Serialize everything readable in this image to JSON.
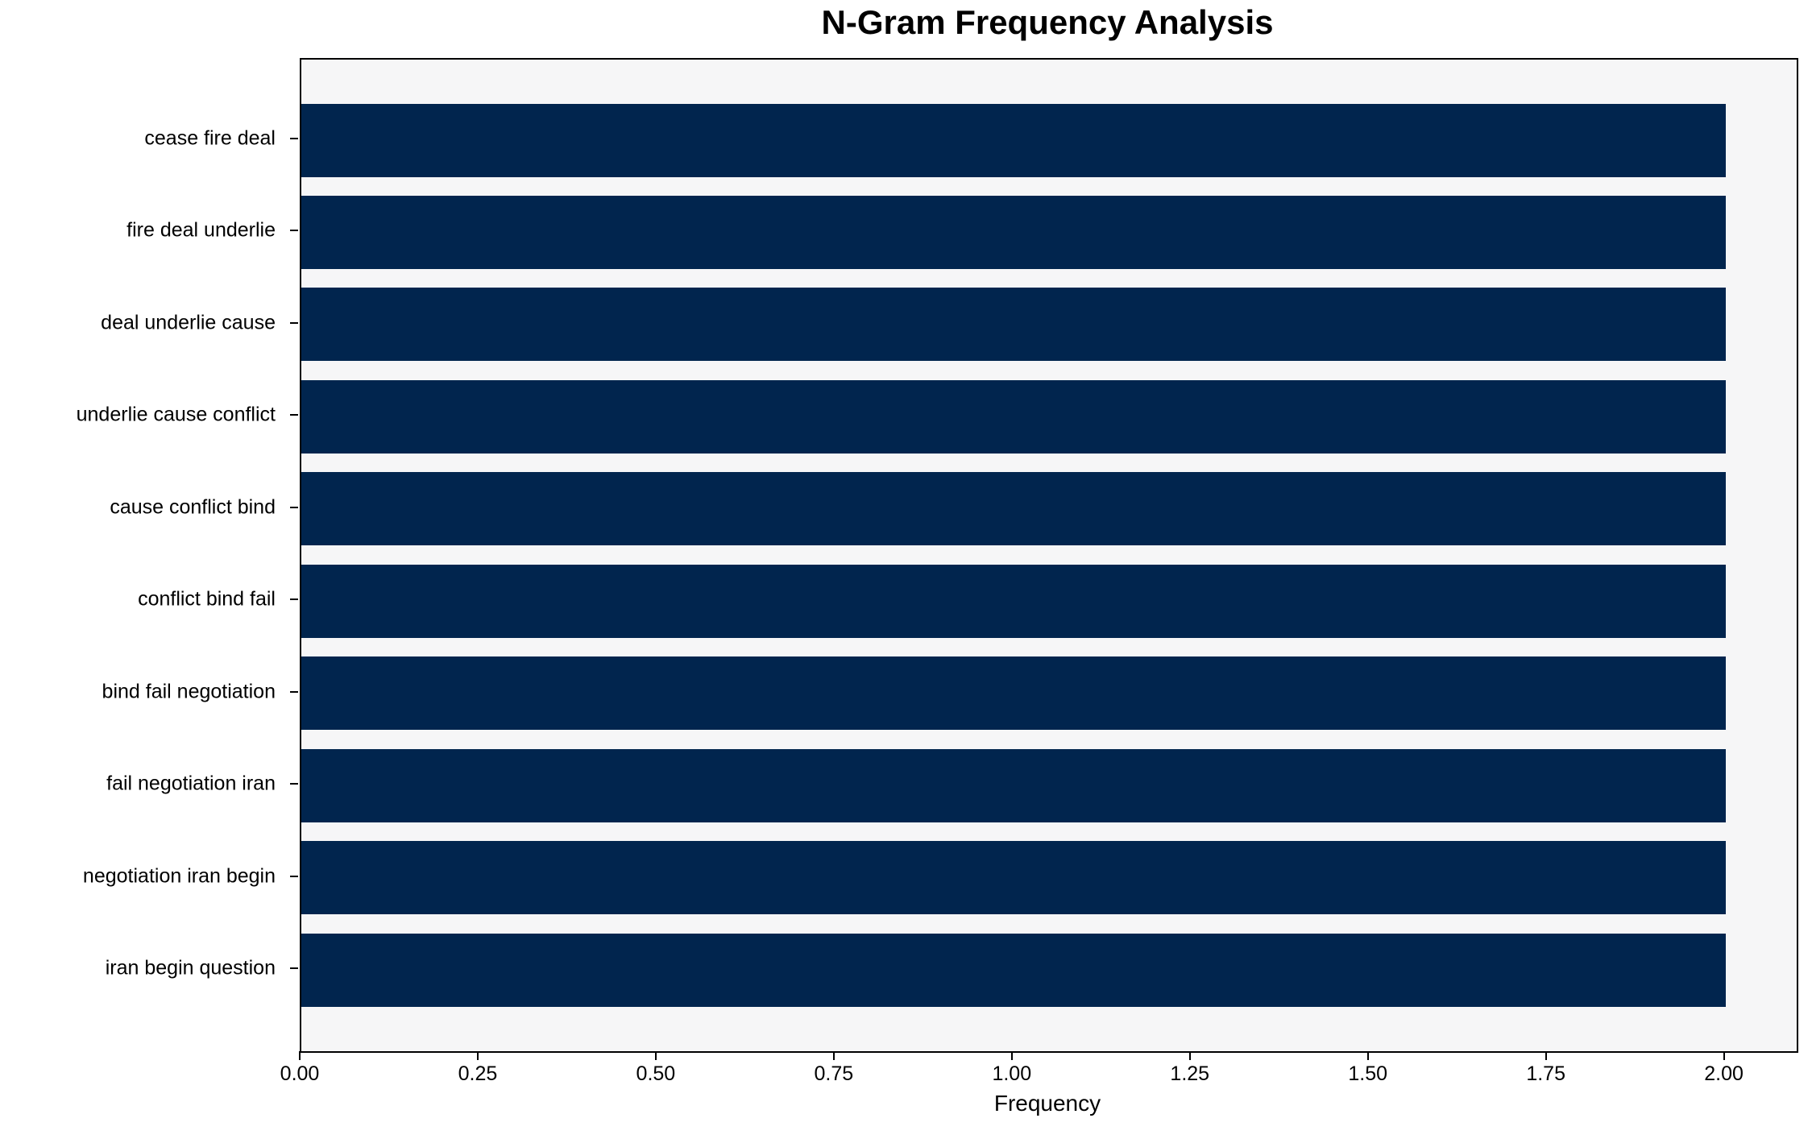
{
  "chart_data": {
    "type": "bar",
    "orientation": "horizontal",
    "title": "N-Gram Frequency Analysis",
    "xlabel": "Frequency",
    "ylabel": "",
    "categories": [
      "cease fire deal",
      "fire deal underlie",
      "deal underlie cause",
      "underlie cause conflict",
      "cause conflict bind",
      "conflict bind fail",
      "bind fail negotiation",
      "fail negotiation iran",
      "negotiation iran begin",
      "iran begin question"
    ],
    "values": [
      2,
      2,
      2,
      2,
      2,
      2,
      2,
      2,
      2,
      2
    ],
    "xlim": [
      0,
      2.1
    ],
    "xtick_values": [
      0.0,
      0.25,
      0.5,
      0.75,
      1.0,
      1.25,
      1.5,
      1.75,
      2.0
    ],
    "xtick_labels": [
      "0.00",
      "0.25",
      "0.50",
      "0.75",
      "1.00",
      "1.25",
      "1.50",
      "1.75",
      "2.00"
    ],
    "grid": false,
    "legend": null,
    "colors": {
      "bar": "#01254e",
      "plot_background": "#f6f6f7",
      "figure_background": "#ffffff",
      "axis": "#000000",
      "text": "#000000"
    }
  }
}
